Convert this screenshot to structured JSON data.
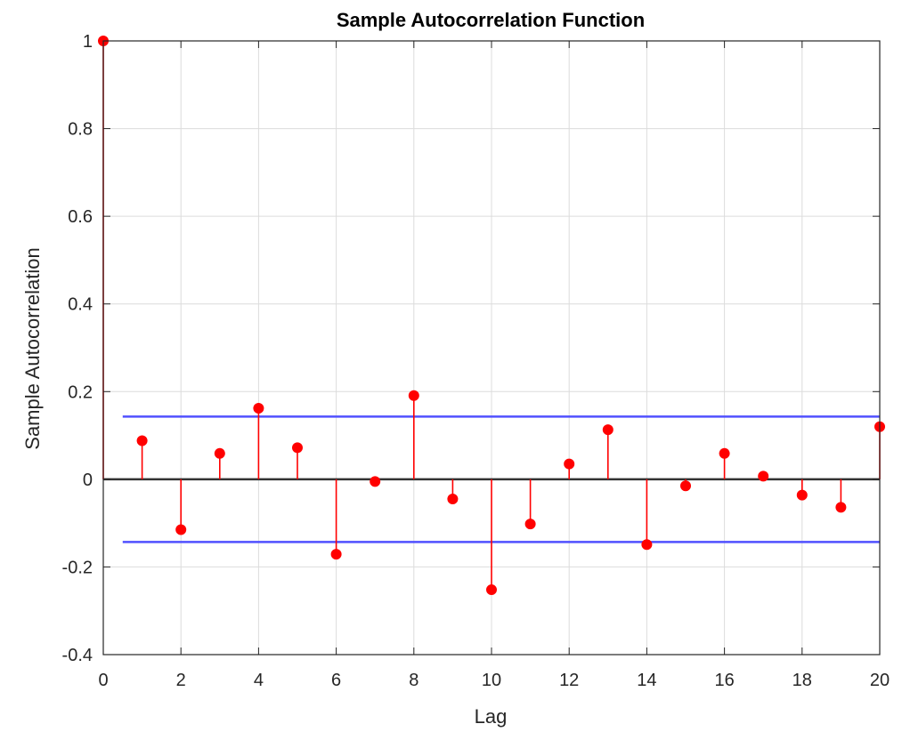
{
  "chart_data": {
    "type": "stem",
    "title": "Sample Autocorrelation Function",
    "xlabel": "Lag",
    "ylabel": "Sample Autocorrelation",
    "xlim": [
      0,
      20
    ],
    "ylim": [
      -0.4,
      1
    ],
    "x_ticks": [
      "0",
      "2",
      "4",
      "6",
      "8",
      "10",
      "12",
      "14",
      "16",
      "18",
      "20"
    ],
    "y_ticks": [
      "-0.4",
      "-0.2",
      "0",
      "0.2",
      "0.4",
      "0.6",
      "0.8",
      "1"
    ],
    "grid": true,
    "series": [
      {
        "lag": [
          0,
          1,
          2,
          3,
          4,
          5,
          6,
          7,
          8,
          9,
          10,
          11,
          12,
          13,
          14,
          15,
          16,
          17,
          18,
          19,
          20
        ],
        "values": [
          1.0,
          0.088,
          -0.115,
          0.059,
          0.162,
          0.072,
          -0.171,
          -0.005,
          0.191,
          -0.045,
          -0.252,
          -0.102,
          0.035,
          0.113,
          -0.149,
          -0.015,
          0.059,
          0.007,
          -0.036,
          -0.064,
          0.12
        ]
      }
    ],
    "confidence_bounds": [
      0.143,
      -0.143
    ],
    "colors": {
      "stem": "#ff0000",
      "bounds": "#5050ff",
      "zero_line": "#333333",
      "grid": "#dcdcdc",
      "axes": "#262626"
    }
  }
}
